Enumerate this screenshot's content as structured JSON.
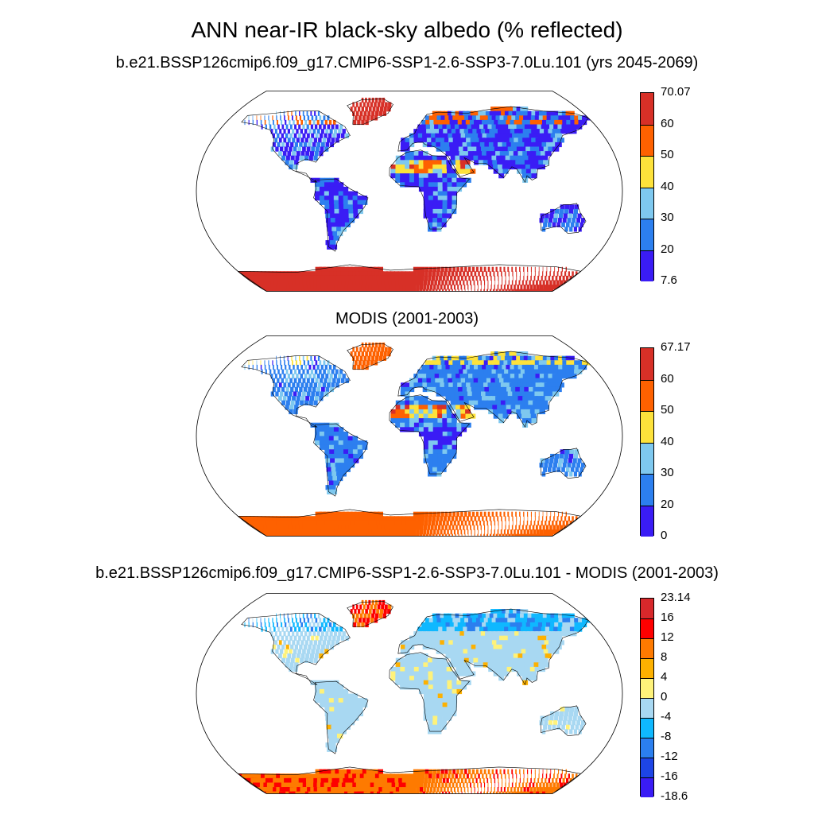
{
  "main_title": "ANN near-IR black-sky albedo (% reflected)",
  "panels": [
    {
      "title": "b.e21.BSSP126cmip6.f09_g17.CMIP6-SSP1-2.6-SSP3-7.0Lu.101 (yrs 2045-2069)",
      "colorbar": {
        "labels": [
          "70.07",
          "60",
          "50",
          "40",
          "30",
          "20",
          "7.6"
        ],
        "colors": [
          "#d73027",
          "#fe6100",
          "#fde23b",
          "#7ec8ef",
          "#2c7fef",
          "#3a1cf5"
        ]
      }
    },
    {
      "title": "MODIS (2001-2003)",
      "colorbar": {
        "labels": [
          "67.17",
          "60",
          "50",
          "40",
          "30",
          "20",
          "0"
        ],
        "colors": [
          "#d73027",
          "#fe6100",
          "#fde23b",
          "#7ec8ef",
          "#2c7fef",
          "#3a1cf5"
        ]
      }
    },
    {
      "title": "b.e21.BSSP126cmip6.f09_g17.CMIP6-SSP1-2.6-SSP3-7.0Lu.101 - MODIS (2001-2003)",
      "colorbar": {
        "labels": [
          "23.14",
          "16",
          "12",
          "8",
          "4",
          "0",
          "-4",
          "-8",
          "-12",
          "-16",
          "-18.6"
        ],
        "colors": [
          "#d7282b",
          "#fe0000",
          "#fe7a00",
          "#fdb100",
          "#fef27a",
          "#a8d8f2",
          "#0fb8ff",
          "#2b7fef",
          "#1d45e6",
          "#3a1cf5"
        ]
      }
    }
  ]
}
